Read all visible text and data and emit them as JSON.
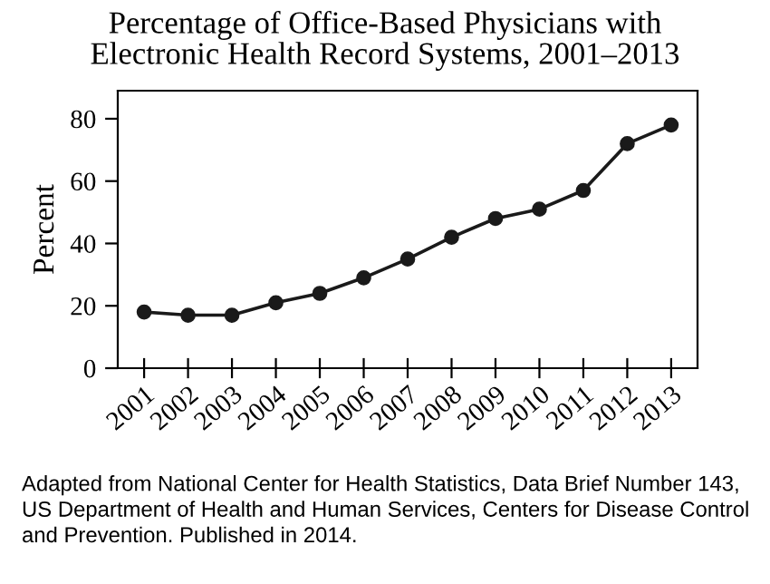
{
  "chart_data": {
    "type": "line",
    "title": "Percentage of Office-Based Physicians with\nElectronic Health Record Systems, 2001–2013",
    "ylabel": "Percent",
    "categories": [
      "2001",
      "2002",
      "2003",
      "2004",
      "2005",
      "2006",
      "2007",
      "2008",
      "2009",
      "2010",
      "2011",
      "2012",
      "2013"
    ],
    "series": [
      {
        "color": "#1a1a1a",
        "values": [
          18,
          17,
          17,
          21,
          24,
          29,
          35,
          42,
          48,
          51,
          57,
          72,
          78
        ]
      }
    ],
    "ylim": [
      0,
      89
    ],
    "yticks": [
      0,
      20,
      40,
      60,
      80
    ],
    "grid": false,
    "marker": "circle",
    "line_style": "solid",
    "annotations": [
      "Adapted from National Center for Health Statistics, Data Brief Number 143, US Department of Health and Human Services, Centers for Disease Control and Prevention. Published in 2014."
    ]
  }
}
